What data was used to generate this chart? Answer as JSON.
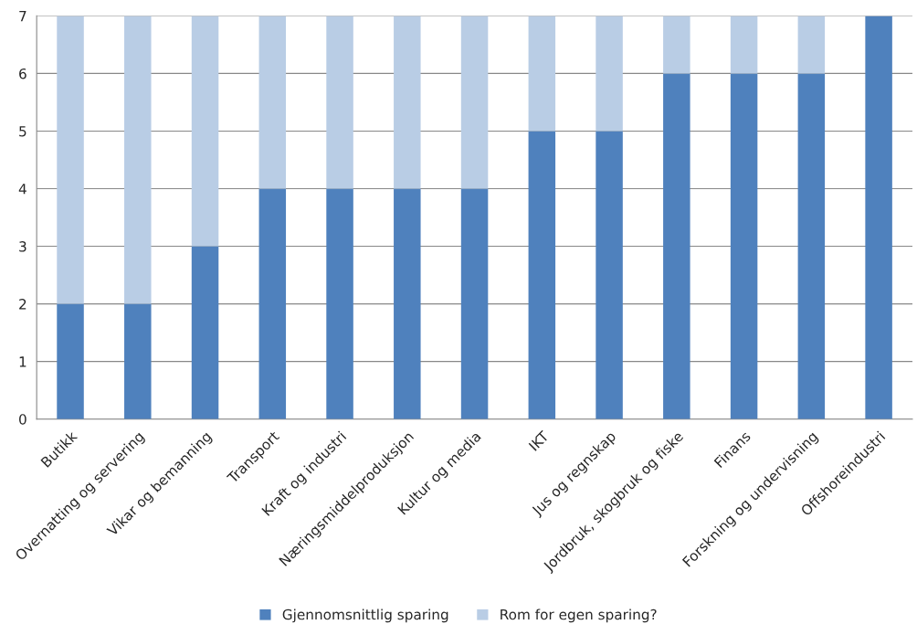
{
  "chart_data": {
    "type": "bar",
    "stacked": true,
    "categories": [
      "Butikk",
      "Overnatting og servering",
      "Vikar og bemanning",
      "Transport",
      "Kraft og industri",
      "Næringsmiddelproduksjon",
      "Kultur og media",
      "IKT",
      "Jus og regnskap",
      "Jordbruk, skogbruk og fiske",
      "Finans",
      "Forskning og undervisning",
      "Offshoreindustri"
    ],
    "series": [
      {
        "name": "Gjennomsnittlig sparing",
        "color": "#4f81bd",
        "values": [
          2,
          2,
          3,
          4,
          4,
          4,
          4,
          5,
          5,
          6,
          6,
          6,
          7
        ]
      },
      {
        "name": "Rom for egen sparing?",
        "color": "#b9cde5",
        "values": [
          5,
          5,
          4,
          3,
          3,
          3,
          3,
          2,
          2,
          1,
          1,
          1,
          0
        ]
      }
    ],
    "ylim": [
      0,
      7
    ],
    "yticks": [
      0,
      1,
      2,
      3,
      4,
      5,
      6,
      7
    ],
    "grid": "y",
    "legend": "bottom"
  }
}
